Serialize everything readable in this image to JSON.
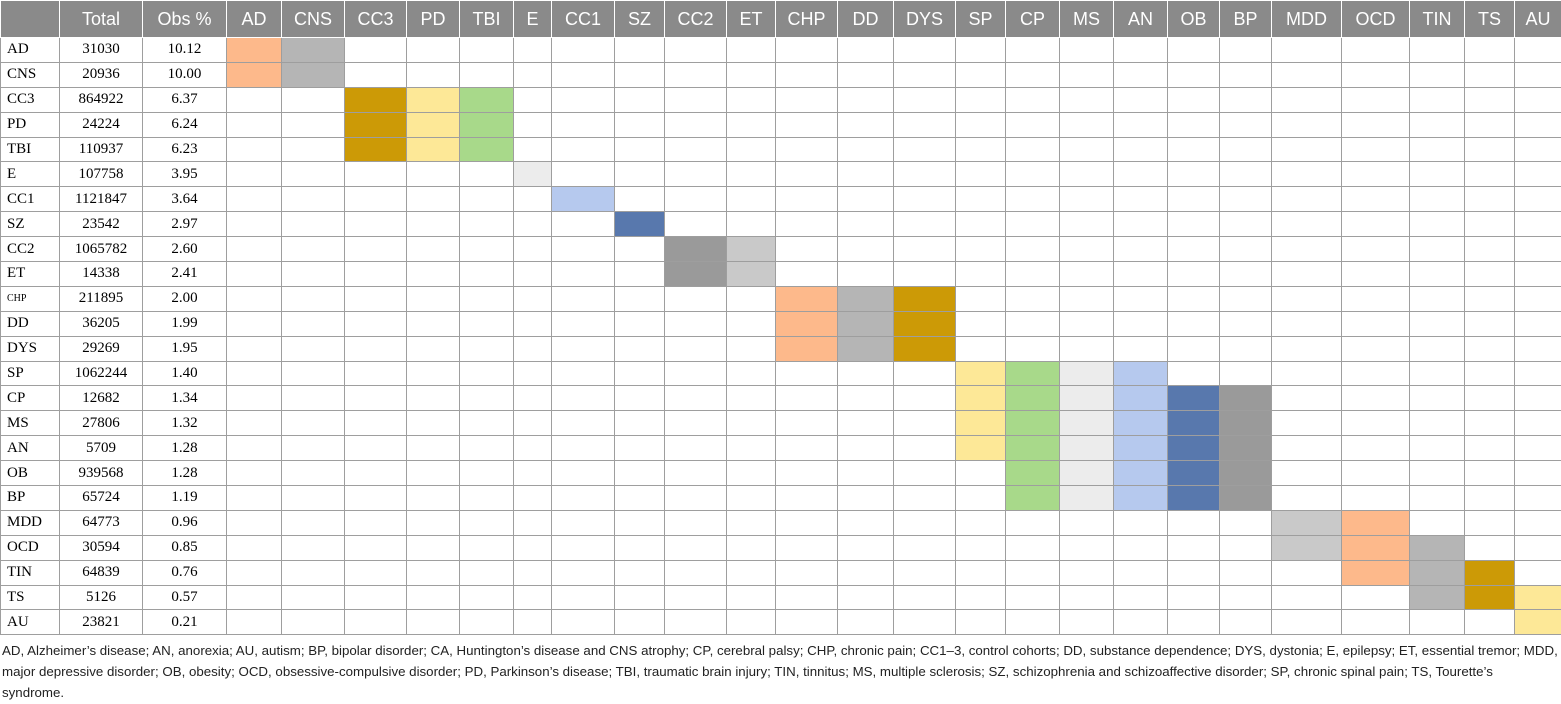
{
  "table": {
    "header_columns": [
      "",
      "Total",
      "Obs %",
      "AD",
      "CNS",
      "CC3",
      "PD",
      "TBI",
      "E",
      "CC1",
      "SZ",
      "CC2",
      "ET",
      "CHP",
      "DD",
      "DYS",
      "SP",
      "CP",
      "MS",
      "AN",
      "OB",
      "BP",
      "MDD",
      "OCD",
      "TIN",
      "TS",
      "AU"
    ],
    "rows": [
      {
        "label": "AD",
        "total": "31030",
        "obs": "10.12"
      },
      {
        "label": "CNS",
        "total": "20936",
        "obs": "10.00"
      },
      {
        "label": "CC3",
        "total": "864922",
        "obs": "6.37"
      },
      {
        "label": "PD",
        "total": "24224",
        "obs": "6.24"
      },
      {
        "label": "TBI",
        "total": "110937",
        "obs": "6.23"
      },
      {
        "label": "E",
        "total": "107758",
        "obs": "3.95"
      },
      {
        "label": "CC1",
        "total": "1121847",
        "obs": "3.64"
      },
      {
        "label": "SZ",
        "total": "23542",
        "obs": "2.97"
      },
      {
        "label": "CC2",
        "total": "1065782",
        "obs": "2.60"
      },
      {
        "label": "ET",
        "total": "14338",
        "obs": "2.41"
      },
      {
        "label": "CHP",
        "total": "211895",
        "obs": "2.00"
      },
      {
        "label": "DD",
        "total": "36205",
        "obs": "1.99"
      },
      {
        "label": "DYS",
        "total": "29269",
        "obs": "1.95"
      },
      {
        "label": "SP",
        "total": "1062244",
        "obs": "1.40"
      },
      {
        "label": "CP",
        "total": "12682",
        "obs": "1.34"
      },
      {
        "label": "MS",
        "total": "27806",
        "obs": "1.32"
      },
      {
        "label": "AN",
        "total": "5709",
        "obs": "1.28"
      },
      {
        "label": "OB",
        "total": "939568",
        "obs": "1.28"
      },
      {
        "label": "BP",
        "total": "65724",
        "obs": "1.19"
      },
      {
        "label": "MDD",
        "total": "64773",
        "obs": "0.96"
      },
      {
        "label": "OCD",
        "total": "30594",
        "obs": "0.85"
      },
      {
        "label": "TIN",
        "total": "64839",
        "obs": "0.76"
      },
      {
        "label": "TS",
        "total": "5126",
        "obs": "0.57"
      },
      {
        "label": "AU",
        "total": "23821",
        "obs": "0.21"
      }
    ],
    "palette": {
      "orange": "#fdb98b",
      "gray": "#b5b5b5",
      "gold": "#cc9a06",
      "yellow": "#fde897",
      "green": "#a8d98a",
      "lightgray": "#ececec",
      "lightblue": "#b6c9ee",
      "blue": "#5878ad",
      "darkgray": "#9a9a9a",
      "silver": "#c9c9c9"
    },
    "shaded_cells": [
      {
        "row": 0,
        "col": "AD",
        "color": "orange"
      },
      {
        "row": 0,
        "col": "CNS",
        "color": "gray"
      },
      {
        "row": 1,
        "col": "AD",
        "color": "orange"
      },
      {
        "row": 1,
        "col": "CNS",
        "color": "gray"
      },
      {
        "row": 2,
        "col": "CC3",
        "color": "gold"
      },
      {
        "row": 2,
        "col": "PD",
        "color": "yellow"
      },
      {
        "row": 2,
        "col": "TBI",
        "color": "green"
      },
      {
        "row": 3,
        "col": "CC3",
        "color": "gold"
      },
      {
        "row": 3,
        "col": "PD",
        "color": "yellow"
      },
      {
        "row": 3,
        "col": "TBI",
        "color": "green"
      },
      {
        "row": 4,
        "col": "CC3",
        "color": "gold"
      },
      {
        "row": 4,
        "col": "PD",
        "color": "yellow"
      },
      {
        "row": 4,
        "col": "TBI",
        "color": "green"
      },
      {
        "row": 5,
        "col": "E",
        "color": "lightgray"
      },
      {
        "row": 6,
        "col": "CC1",
        "color": "lightblue"
      },
      {
        "row": 7,
        "col": "SZ",
        "color": "blue"
      },
      {
        "row": 8,
        "col": "CC2",
        "color": "darkgray"
      },
      {
        "row": 8,
        "col": "ET",
        "color": "silver"
      },
      {
        "row": 9,
        "col": "CC2",
        "color": "darkgray"
      },
      {
        "row": 9,
        "col": "ET",
        "color": "silver"
      },
      {
        "row": 10,
        "col": "CHP",
        "color": "orange"
      },
      {
        "row": 10,
        "col": "DD",
        "color": "gray"
      },
      {
        "row": 10,
        "col": "DYS",
        "color": "gold"
      },
      {
        "row": 11,
        "col": "CHP",
        "color": "orange"
      },
      {
        "row": 11,
        "col": "DD",
        "color": "gray"
      },
      {
        "row": 11,
        "col": "DYS",
        "color": "gold"
      },
      {
        "row": 12,
        "col": "CHP",
        "color": "orange"
      },
      {
        "row": 12,
        "col": "DD",
        "color": "gray"
      },
      {
        "row": 12,
        "col": "DYS",
        "color": "gold"
      },
      {
        "row": 13,
        "col": "SP",
        "color": "yellow"
      },
      {
        "row": 13,
        "col": "CP",
        "color": "green"
      },
      {
        "row": 13,
        "col": "MS",
        "color": "lightgray"
      },
      {
        "row": 13,
        "col": "AN",
        "color": "lightblue"
      },
      {
        "row": 14,
        "col": "SP",
        "color": "yellow"
      },
      {
        "row": 14,
        "col": "CP",
        "color": "green"
      },
      {
        "row": 14,
        "col": "MS",
        "color": "lightgray"
      },
      {
        "row": 14,
        "col": "AN",
        "color": "lightblue"
      },
      {
        "row": 14,
        "col": "OB",
        "color": "blue"
      },
      {
        "row": 14,
        "col": "BP",
        "color": "darkgray"
      },
      {
        "row": 15,
        "col": "SP",
        "color": "yellow"
      },
      {
        "row": 15,
        "col": "CP",
        "color": "green"
      },
      {
        "row": 15,
        "col": "MS",
        "color": "lightgray"
      },
      {
        "row": 15,
        "col": "AN",
        "color": "lightblue"
      },
      {
        "row": 15,
        "col": "OB",
        "color": "blue"
      },
      {
        "row": 15,
        "col": "BP",
        "color": "darkgray"
      },
      {
        "row": 16,
        "col": "SP",
        "color": "yellow"
      },
      {
        "row": 16,
        "col": "CP",
        "color": "green"
      },
      {
        "row": 16,
        "col": "MS",
        "color": "lightgray"
      },
      {
        "row": 16,
        "col": "AN",
        "color": "lightblue"
      },
      {
        "row": 16,
        "col": "OB",
        "color": "blue"
      },
      {
        "row": 16,
        "col": "BP",
        "color": "darkgray"
      },
      {
        "row": 17,
        "col": "CP",
        "color": "green"
      },
      {
        "row": 17,
        "col": "MS",
        "color": "lightgray"
      },
      {
        "row": 17,
        "col": "AN",
        "color": "lightblue"
      },
      {
        "row": 17,
        "col": "OB",
        "color": "blue"
      },
      {
        "row": 17,
        "col": "BP",
        "color": "darkgray"
      },
      {
        "row": 18,
        "col": "CP",
        "color": "green"
      },
      {
        "row": 18,
        "col": "MS",
        "color": "lightgray"
      },
      {
        "row": 18,
        "col": "AN",
        "color": "lightblue"
      },
      {
        "row": 18,
        "col": "OB",
        "color": "blue"
      },
      {
        "row": 18,
        "col": "BP",
        "color": "darkgray"
      },
      {
        "row": 19,
        "col": "MDD",
        "color": "silver"
      },
      {
        "row": 19,
        "col": "OCD",
        "color": "orange"
      },
      {
        "row": 20,
        "col": "MDD",
        "color": "silver"
      },
      {
        "row": 20,
        "col": "OCD",
        "color": "orange"
      },
      {
        "row": 20,
        "col": "TIN",
        "color": "gray"
      },
      {
        "row": 21,
        "col": "OCD",
        "color": "orange"
      },
      {
        "row": 21,
        "col": "TIN",
        "color": "gray"
      },
      {
        "row": 21,
        "col": "TS",
        "color": "gold"
      },
      {
        "row": 22,
        "col": "TIN",
        "color": "gray"
      },
      {
        "row": 22,
        "col": "TS",
        "color": "gold"
      },
      {
        "row": 22,
        "col": "AU",
        "color": "yellow"
      },
      {
        "row": 23,
        "col": "AU",
        "color": "yellow"
      }
    ]
  },
  "footnote": "AD, Alzheimer’s disease; AN, anorexia; AU, autism; BP, bipolar disorder; CA, Huntington’s disease and CNS atrophy; CP, cerebral palsy; CHP, chronic pain; CC1–3, control cohorts; DD, substance dependence; DYS, dystonia; E, epilepsy; ET, essential tremor; MDD, major depressive disorder; OB, obesity; OCD, obsessive-compulsive disorder; PD, Parkinson’s disease; TBI, traumatic brain injury; TIN, tinnitus; MS, multiple sclerosis; SZ, schizophrenia and schizoaffective disorder; SP, chronic spinal pain; TS, Tourette’s syndrome."
}
